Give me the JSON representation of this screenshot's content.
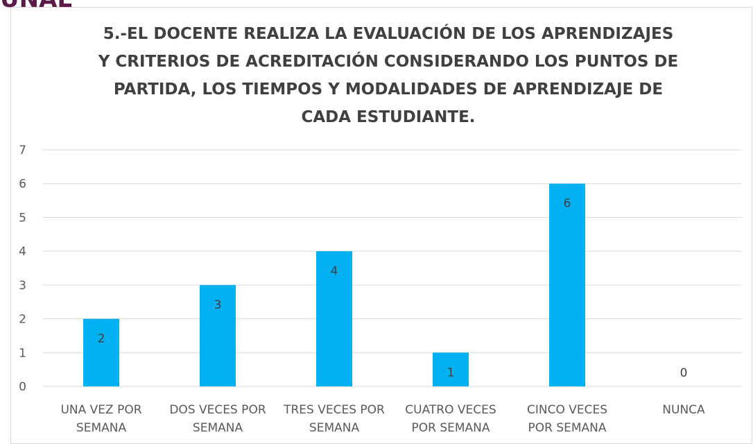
{
  "logo": "UNAE",
  "chart_data": {
    "type": "bar",
    "title": [
      "5.-EL DOCENTE REALIZA LA EVALUACIÓN DE LOS APRENDIZAJES",
      "Y CRITERIOS DE ACREDITACIÓN CONSIDERANDO LOS PUNTOS DE",
      "PARTIDA, LOS TIEMPOS Y MODALIDADES DE APRENDIZAJE DE",
      "CADA ESTUDIANTE."
    ],
    "categories": [
      [
        "UNA VEZ POR",
        "SEMANA"
      ],
      [
        "DOS VECES POR",
        "SEMANA"
      ],
      [
        "TRES VECES POR",
        "SEMANA"
      ],
      [
        "CUATRO VECES",
        "POR SEMANA"
      ],
      [
        "CINCO VECES",
        "POR SEMANA"
      ],
      [
        "NUNCA"
      ]
    ],
    "values": [
      2,
      3,
      4,
      1,
      6,
      0
    ],
    "color": "#00b0f0",
    "ylim": [
      0,
      7
    ],
    "yticks": [
      0,
      1,
      2,
      3,
      4,
      5,
      6,
      7
    ],
    "grid": true
  }
}
